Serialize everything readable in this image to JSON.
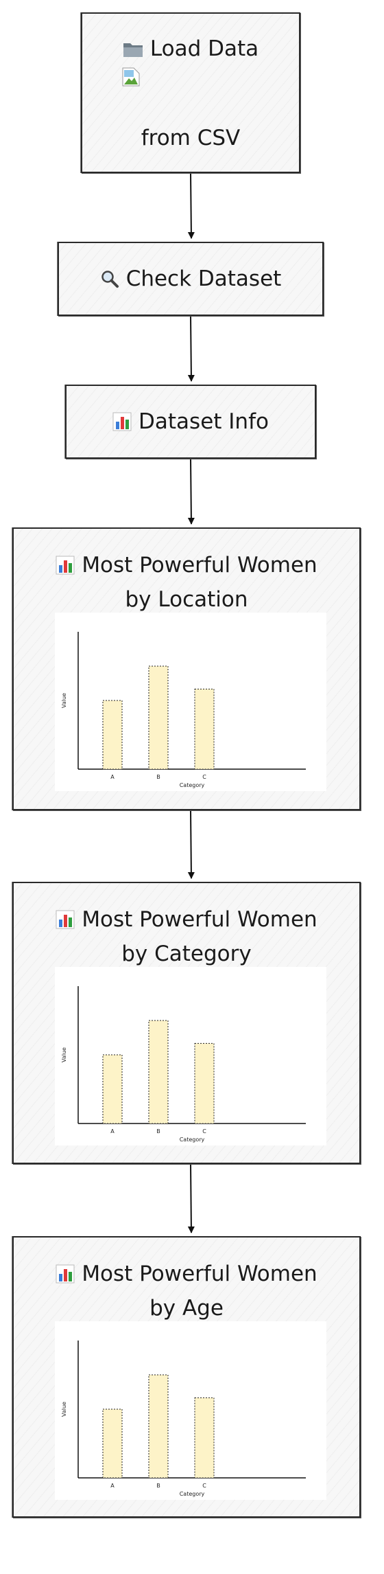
{
  "nodes": {
    "load": {
      "icon": "folder-icon",
      "title": "Load Data",
      "subtitle": "from CSV"
    },
    "check": {
      "icon": "magnifier-icon",
      "title": "Check Dataset"
    },
    "info": {
      "icon": "bar-chart-icon",
      "title": "Dataset Info"
    },
    "location": {
      "icon": "bar-chart-icon",
      "title_line1": "Most Powerful Women",
      "title_line2": "by Location"
    },
    "category": {
      "icon": "bar-chart-icon",
      "title_line1": "Most Powerful Women",
      "title_line2": "by Category"
    },
    "age": {
      "icon": "bar-chart-icon",
      "title_line1": "Most Powerful Women",
      "title_line2": "by Age"
    }
  },
  "chart_data": [
    {
      "type": "bar",
      "categories": [
        "A",
        "B",
        "C"
      ],
      "values": [
        3,
        4.5,
        3.5
      ],
      "xlabel": "Category",
      "ylabel": "Value",
      "ylim": [
        0,
        6
      ],
      "bar_color": "#fdf3c8"
    },
    {
      "type": "bar",
      "categories": [
        "A",
        "B",
        "C"
      ],
      "values": [
        3,
        4.5,
        3.5
      ],
      "xlabel": "Category",
      "ylabel": "Value",
      "ylim": [
        0,
        6
      ],
      "bar_color": "#fdf3c8"
    },
    {
      "type": "bar",
      "categories": [
        "A",
        "B",
        "C"
      ],
      "values": [
        3,
        4.5,
        3.5
      ],
      "xlabel": "Category",
      "ylabel": "Value",
      "ylim": [
        0,
        6
      ],
      "bar_color": "#fdf3c8"
    }
  ]
}
